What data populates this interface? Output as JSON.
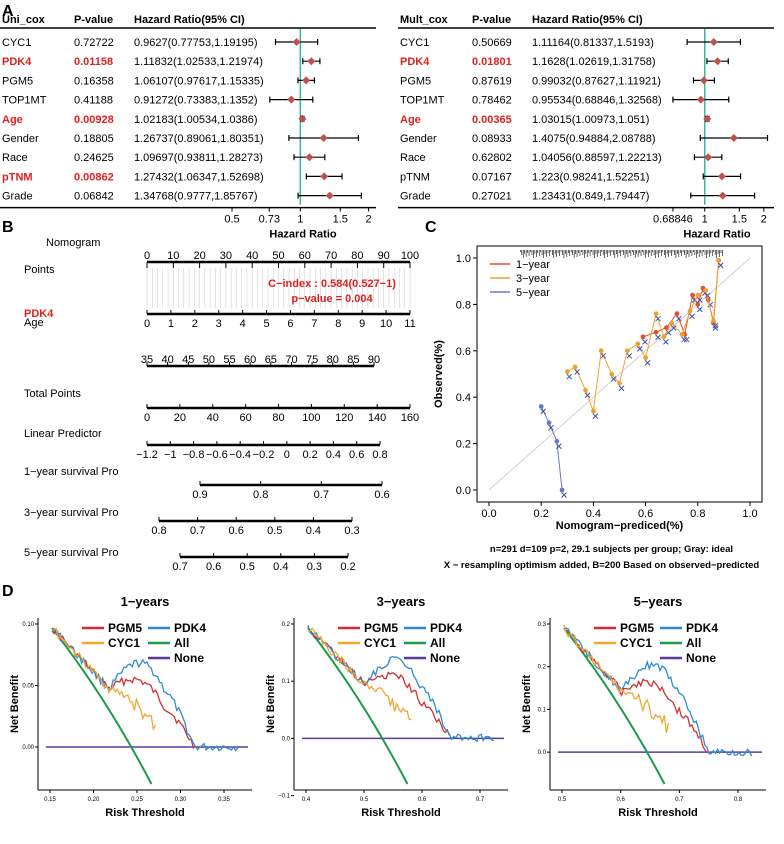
{
  "panels": {
    "A": {
      "label": "A"
    },
    "B": {
      "label": "B"
    },
    "C": {
      "label": "C"
    },
    "D": {
      "label": "D"
    }
  },
  "colors": {
    "red": "#e02020",
    "teal": "#3cb4a0",
    "diamond": "#c0504d"
  },
  "forest_uni": {
    "headers": [
      "Uni_cox",
      "P-value",
      "Hazard Ratio(95% CI)"
    ],
    "rows": [
      {
        "name": "CYC1",
        "p": "0.72722",
        "hr": "0.9627(0.77753,1.19195)",
        "highlight": false,
        "est": 0.9627,
        "lo": 0.77753,
        "hi": 1.19195
      },
      {
        "name": "PDK4",
        "p": "0.01158",
        "hr": "1.11832(1.02533,1.21974)",
        "highlight": true,
        "est": 1.11832,
        "lo": 1.02533,
        "hi": 1.21974
      },
      {
        "name": "PGM5",
        "p": "0.16358",
        "hr": "1.06107(0.97617,1.15335)",
        "highlight": false,
        "est": 1.06107,
        "lo": 0.97617,
        "hi": 1.15335
      },
      {
        "name": "TOP1MT",
        "p": "0.41188",
        "hr": "0.91272(0.73383,1.1352)",
        "highlight": false,
        "est": 0.91272,
        "lo": 0.73383,
        "hi": 1.1352
      },
      {
        "name": "Age",
        "p": "0.00928",
        "hr": "1.02183(1.00534,1.0386)",
        "highlight": true,
        "est": 1.02183,
        "lo": 1.00534,
        "hi": 1.0386
      },
      {
        "name": "Gender",
        "p": "0.18805",
        "hr": "1.26737(0.89061,1.80351)",
        "highlight": false,
        "est": 1.26737,
        "lo": 0.89061,
        "hi": 1.80351
      },
      {
        "name": "Race",
        "p": "0.24625",
        "hr": "1.09697(0.93811,1.28273)",
        "highlight": false,
        "est": 1.09697,
        "lo": 0.93811,
        "hi": 1.28273
      },
      {
        "name": "pTNM",
        "p": "0.00862",
        "hr": "1.27432(1.06347,1.52698)",
        "highlight": true,
        "est": 1.27432,
        "lo": 1.06347,
        "hi": 1.52698
      },
      {
        "name": "Grade",
        "p": "0.06842",
        "hr": "1.34768(0.9777,1.85767)",
        "highlight": false,
        "est": 1.34768,
        "lo": 0.9777,
        "hi": 1.85767
      }
    ],
    "ticks": [
      "0.5",
      "0.73",
      "1",
      "1.5",
      "2"
    ],
    "tick_values": [
      0.5,
      0.73,
      1,
      1.5,
      2
    ],
    "xmin": 0.48,
    "xmax": 2.2,
    "xlabel": "Hazard Ratio"
  },
  "forest_multi": {
    "headers": [
      "Mult_cox",
      "P-value",
      "Hazard Ratio(95% CI)"
    ],
    "rows": [
      {
        "name": "CYC1",
        "p": "0.50669",
        "hr": "1.11164(0.81337,1.5193)",
        "highlight": false,
        "est": 1.11164,
        "lo": 0.81337,
        "hi": 1.5193
      },
      {
        "name": "PDK4",
        "p": "0.01801",
        "hr": "1.1628(1.02619,1.31758)",
        "highlight": true,
        "est": 1.1628,
        "lo": 1.02619,
        "hi": 1.31758
      },
      {
        "name": "PGM5",
        "p": "0.87619",
        "hr": "0.99032(0.87627,1.11921)",
        "highlight": false,
        "est": 0.99032,
        "lo": 0.87627,
        "hi": 1.11921
      },
      {
        "name": "TOP1MT",
        "p": "0.78462",
        "hr": "0.95534(0.68846,1.32568)",
        "highlight": false,
        "est": 0.95534,
        "lo": 0.68846,
        "hi": 1.32568
      },
      {
        "name": "Age",
        "p": "0.00365",
        "hr": "1.03015(1.00973,1.051)",
        "highlight": true,
        "est": 1.03015,
        "lo": 1.00973,
        "hi": 1.051
      },
      {
        "name": "Gender",
        "p": "0.08933",
        "hr": "1.4075(0.94884,2.08788)",
        "highlight": false,
        "est": 1.4075,
        "lo": 0.94884,
        "hi": 2.08788
      },
      {
        "name": "Race",
        "p": "0.62802",
        "hr": "1.04056(0.88597,1.22213)",
        "highlight": false,
        "est": 1.04056,
        "lo": 0.88597,
        "hi": 1.22213
      },
      {
        "name": "pTNM",
        "p": "0.07167",
        "hr": "1.223(0.98241,1.52251)",
        "highlight": false,
        "est": 1.223,
        "lo": 0.98241,
        "hi": 1.52251
      },
      {
        "name": "Grade",
        "p": "0.27021",
        "hr": "1.23431(0.849,1.79447)",
        "highlight": false,
        "est": 1.23431,
        "lo": 0.849,
        "hi": 1.79447
      }
    ],
    "ticks": [
      "0.68846",
      "1",
      "1.5",
      "2"
    ],
    "tick_values": [
      0.68846,
      1,
      1.5,
      2
    ],
    "xmin": 0.62,
    "xmax": 2.15,
    "xlabel": "Hazard Ratio"
  },
  "nomogram": {
    "title": "Nomogram",
    "cindex": "C−index : 0.584(0.527−1)",
    "pvalue": "p−value = 0.004",
    "rows": [
      {
        "label": "Points",
        "highlight": false,
        "ticks": [
          "0",
          "10",
          "20",
          "30",
          "40",
          "50",
          "60",
          "70",
          "80",
          "90",
          "100"
        ],
        "start": 0,
        "end": 100,
        "scale_max": 100
      },
      {
        "label": "PDK4",
        "highlight": true,
        "ticks": [
          "0",
          "1",
          "2",
          "3",
          "4",
          "5",
          "6",
          "7",
          "8",
          "9",
          "10",
          "11"
        ],
        "start": 0,
        "end": 11,
        "scale_max": 11
      },
      {
        "label": "Age",
        "highlight": false,
        "ticks": [
          "35",
          "40",
          "45",
          "50",
          "55",
          "60",
          "65",
          "70",
          "75",
          "80",
          "85",
          "90"
        ],
        "start": 35,
        "end": 90,
        "scale_max": 90
      },
      {
        "label": "Total Points",
        "highlight": false,
        "ticks": [
          "0",
          "20",
          "40",
          "60",
          "80",
          "100",
          "120",
          "140",
          "160"
        ],
        "start": 0,
        "end": 160,
        "scale_max": 160
      },
      {
        "label": "Linear Predictor",
        "highlight": false,
        "ticks": [
          "−1.2",
          "−1",
          "−0.8",
          "−0.6",
          "−0.4",
          "−0.2",
          "0",
          "0.2",
          "0.4",
          "0.6",
          "0.8"
        ],
        "start": -1.2,
        "end": 0.8,
        "scale_max": 0.8
      },
      {
        "label": "1−year survival Pro",
        "highlight": false,
        "ticks": [
          "0.9",
          "0.8",
          "0.7",
          "0.6"
        ],
        "start": 0.9,
        "end": 0.6,
        "scale_max": 0.6
      },
      {
        "label": "3−year survival Pro",
        "highlight": false,
        "ticks": [
          "0.8",
          "0.7",
          "0.6",
          "0.5",
          "0.4",
          "0.3"
        ],
        "start": 0.8,
        "end": 0.3,
        "scale_max": 0.3
      },
      {
        "label": "5−year survival Pro",
        "highlight": false,
        "ticks": [
          "0.7",
          "0.6",
          "0.5",
          "0.4",
          "0.3",
          "0.2"
        ],
        "start": 0.7,
        "end": 0.2,
        "scale_max": 0.2
      }
    ]
  },
  "calibration": {
    "xlabel": "Nomogram−prediced(%)",
    "ylabel": "Observed(%)",
    "xticks": [
      "0.0",
      "0.2",
      "0.4",
      "0.6",
      "0.8",
      "1.0"
    ],
    "yticks": [
      "0.0",
      "0.2",
      "0.4",
      "0.6",
      "0.8",
      "1.0"
    ],
    "legend": [
      "1−year",
      "3−year",
      "5−year"
    ],
    "legend_colors": [
      "#d9552f",
      "#f0a030",
      "#6a78c8"
    ],
    "note1": "n=291 d=109 p=2, 29.1 subjects per group; Gray: ideal",
    "note2": "X − resampling optimism added, B=200 Based on observed−predicted",
    "series": [
      {
        "name": "1−year",
        "x": [
          0.59,
          0.64,
          0.68,
          0.72,
          0.75,
          0.78,
          0.8,
          0.82,
          0.84,
          0.86,
          0.88
        ],
        "y": [
          0.66,
          0.68,
          0.7,
          0.76,
          0.67,
          0.84,
          0.8,
          0.87,
          0.82,
          0.72,
          0.99
        ]
      },
      {
        "name": "3−year",
        "x": [
          0.3,
          0.33,
          0.37,
          0.4,
          0.43,
          0.47,
          0.5,
          0.53,
          0.57,
          0.6,
          0.64,
          0.67,
          0.7,
          0.74,
          0.77,
          0.8,
          0.83,
          0.86,
          0.88
        ],
        "y": [
          0.51,
          0.53,
          0.43,
          0.34,
          0.6,
          0.5,
          0.46,
          0.6,
          0.63,
          0.57,
          0.76,
          0.66,
          0.72,
          0.67,
          0.77,
          0.84,
          0.86,
          0.73,
          0.99
        ]
      },
      {
        "name": "5−year",
        "x": [
          0.2,
          0.23,
          0.26,
          0.28
        ],
        "y": [
          0.36,
          0.29,
          0.21,
          0.0
        ]
      }
    ]
  },
  "dca": {
    "xlabel": "Risk Threshold",
    "ylabel": "Net Benefit",
    "legend": [
      "PGM5",
      "PDK4",
      "CYC1",
      "All",
      "None"
    ],
    "legend_colors": [
      "#d32f2f",
      "#2e8bd0",
      "#f2a630",
      "#1f9a4a",
      "#5a3aa0"
    ],
    "panels": [
      {
        "title": "1−years",
        "xticks": [
          "0.15",
          "0.20",
          "0.25",
          "0.30",
          "0.35"
        ],
        "yticks": [
          "0.10",
          "0.05",
          "0.00"
        ]
      },
      {
        "title": "3−years",
        "xticks": [
          "0.4",
          "0.5",
          "0.6",
          "0.7"
        ],
        "yticks": [
          "0.2",
          "0.1",
          "0.0",
          "−0.1"
        ]
      },
      {
        "title": "5−years",
        "xticks": [
          "0.5",
          "0.6",
          "0.7",
          "0.8"
        ],
        "yticks": [
          "0.3",
          "0.2",
          "0.1",
          "0.0"
        ]
      }
    ]
  }
}
